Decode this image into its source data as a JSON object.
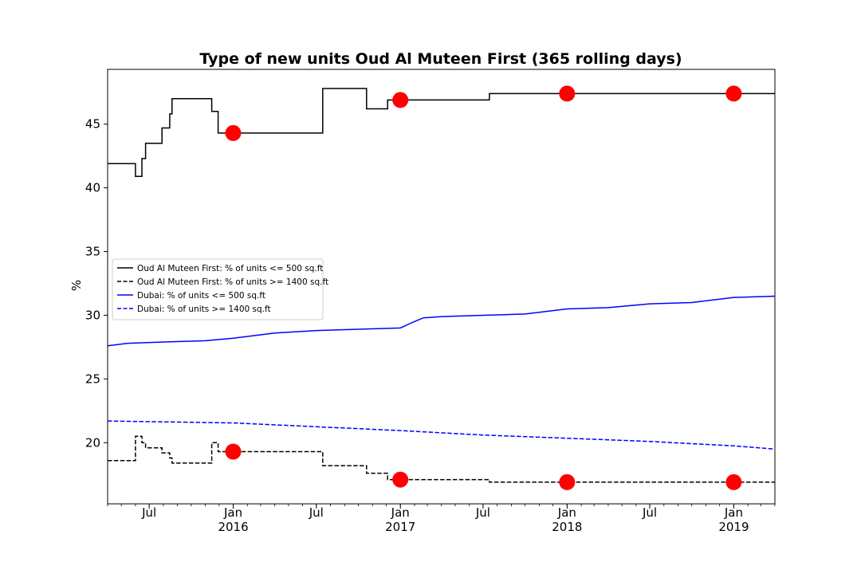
{
  "chart_data": {
    "type": "line",
    "title": "Type of new units Oud Al Muteen First (365 rolling days)",
    "ylabel": "%",
    "xlabel": "",
    "xlim": [
      "2015-04-01",
      "2019-04-01"
    ],
    "ylim": [
      15.2,
      49.3
    ],
    "y_ticks": [
      20,
      25,
      30,
      35,
      40,
      45
    ],
    "y_tick_labels": [
      "20",
      "25",
      "30",
      "35",
      "40",
      "45"
    ],
    "x_major_ticks": [
      {
        "date": "2015-07-01",
        "label": "Jul",
        "year": ""
      },
      {
        "date": "2016-01-01",
        "label": "Jan",
        "year": "2016"
      },
      {
        "date": "2016-07-01",
        "label": "Jul",
        "year": ""
      },
      {
        "date": "2017-01-01",
        "label": "Jan",
        "year": "2017"
      },
      {
        "date": "2017-07-01",
        "label": "Jul",
        "year": ""
      },
      {
        "date": "2018-01-01",
        "label": "Jan",
        "year": "2018"
      },
      {
        "date": "2018-07-01",
        "label": "Jul",
        "year": ""
      },
      {
        "date": "2019-01-01",
        "label": "Jan",
        "year": "2019"
      }
    ],
    "grid": false,
    "legend_position": "center-left",
    "series": [
      {
        "name": "Oud Al Muteen First: % of units <= 500 sq.ft",
        "color": "#000000",
        "style": "solid",
        "step": true,
        "x": [
          "2015-04-01",
          "2015-06-01",
          "2015-06-15",
          "2015-06-23",
          "2015-07-29",
          "2015-08-15",
          "2015-08-20",
          "2015-11-15",
          "2015-11-29",
          "2016-07-15",
          "2016-10-19",
          "2016-12-04",
          "2017-07-15",
          "2019-04-01"
        ],
        "y": [
          41.9,
          40.9,
          42.3,
          43.5,
          44.7,
          45.8,
          47.0,
          46.0,
          44.3,
          47.8,
          46.2,
          46.9,
          47.4,
          47.4
        ]
      },
      {
        "name": "Oud Al Muteen First: % of units >= 1400 sq.ft",
        "color": "#000000",
        "style": "dashed",
        "step": true,
        "x": [
          "2015-04-01",
          "2015-06-01",
          "2015-06-15",
          "2015-06-23",
          "2015-07-29",
          "2015-08-15",
          "2015-08-20",
          "2015-11-15",
          "2015-11-29",
          "2016-07-15",
          "2016-10-19",
          "2016-12-04",
          "2017-07-15",
          "2019-04-01"
        ],
        "y": [
          18.6,
          20.5,
          20.0,
          19.6,
          19.2,
          18.8,
          18.4,
          20.0,
          19.3,
          18.2,
          17.6,
          17.1,
          16.9,
          16.9
        ]
      },
      {
        "name": "Dubai: % of units <= 500 sq.ft",
        "color": "#0000ff",
        "style": "solid",
        "step": false,
        "x": [
          "2015-04-01",
          "2015-05-15",
          "2015-08-01",
          "2015-11-01",
          "2016-01-01",
          "2016-04-01",
          "2016-07-01",
          "2016-10-01",
          "2017-01-01",
          "2017-01-25",
          "2017-02-20",
          "2017-04-01",
          "2017-07-01",
          "2017-10-01",
          "2018-01-01",
          "2018-04-01",
          "2018-07-01",
          "2018-10-01",
          "2019-01-01",
          "2019-04-01"
        ],
        "y": [
          27.6,
          27.8,
          27.9,
          28.0,
          28.2,
          28.6,
          28.8,
          28.9,
          29.0,
          29.4,
          29.8,
          29.9,
          30.0,
          30.1,
          30.5,
          30.6,
          30.9,
          31.0,
          31.4,
          31.5
        ]
      },
      {
        "name": "Dubai: % of units >= 1400 sq.ft",
        "color": "#0000ff",
        "style": "dashed",
        "step": false,
        "x": [
          "2015-04-01",
          "2015-07-01",
          "2016-01-01",
          "2016-07-01",
          "2017-01-01",
          "2017-07-01",
          "2018-01-01",
          "2018-07-01",
          "2019-01-01",
          "2019-04-01"
        ],
        "y": [
          21.7,
          21.65,
          21.55,
          21.25,
          20.95,
          20.6,
          20.35,
          20.1,
          19.75,
          19.5
        ]
      }
    ],
    "markers": {
      "color": "#ff0000",
      "x": [
        "2016-01-01",
        "2017-01-01",
        "2018-01-01",
        "2019-01-01",
        "2016-01-01",
        "2017-01-01",
        "2018-01-01",
        "2019-01-01"
      ],
      "y": [
        44.3,
        46.9,
        47.4,
        47.4,
        19.3,
        17.1,
        16.9,
        16.9
      ]
    }
  }
}
